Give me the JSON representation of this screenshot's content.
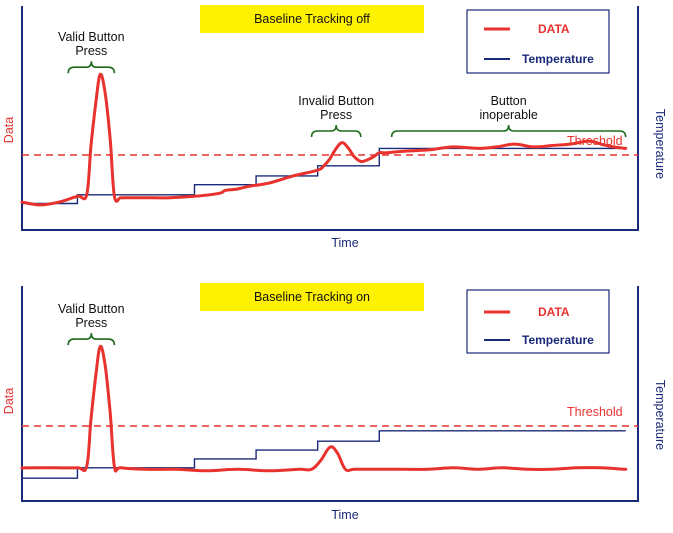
{
  "colors": {
    "data": "#e8322e",
    "temperature": "#1a2a7a",
    "threshold": "#e8322e",
    "axis": "#1a2a7a",
    "banner": "#fff200",
    "bracket": "#1e6b1e",
    "data_axis_label": "#e8322e",
    "temp_axis_label": "#1a2a7a",
    "time_label": "#1a2a7a"
  },
  "chart_data": [
    {
      "type": "line",
      "title": "Baseline Tracking off",
      "xlabel": "Time",
      "ylabel_left": "Data",
      "ylabel_right": "Temperature",
      "threshold_label": "Threshold",
      "threshold": 0.44,
      "xlim": [
        0,
        100
      ],
      "ylim": [
        0,
        1
      ],
      "legend": {
        "position": "top-right",
        "entries": [
          "DATA",
          "Temperature"
        ]
      },
      "series": [
        {
          "name": "DATA",
          "color": "#e8322e",
          "style": "smooth",
          "x": [
            0,
            3,
            6,
            9,
            10.5,
            11.2,
            12,
            12.7,
            13.5,
            14.3,
            15,
            16,
            17,
            20,
            24,
            28,
            32,
            33,
            35,
            37,
            40,
            44,
            48,
            49,
            50,
            51,
            52,
            53,
            54,
            55,
            56,
            57,
            58,
            59,
            62,
            66,
            70,
            74,
            77,
            80,
            83,
            86,
            89,
            92,
            94,
            96,
            98
          ],
          "y": [
            0.11,
            0.09,
            0.11,
            0.15,
            0.16,
            0.5,
            0.8,
            0.99,
            0.86,
            0.55,
            0.15,
            0.14,
            0.14,
            0.14,
            0.14,
            0.15,
            0.17,
            0.19,
            0.2,
            0.22,
            0.24,
            0.29,
            0.33,
            0.36,
            0.41,
            0.48,
            0.52,
            0.48,
            0.42,
            0.39,
            0.4,
            0.42,
            0.45,
            0.45,
            0.46,
            0.47,
            0.49,
            0.48,
            0.49,
            0.51,
            0.49,
            0.5,
            0.51,
            0.53,
            0.51,
            0.49,
            0.48
          ]
        },
        {
          "name": "Temperature",
          "color": "#1a2a7a",
          "style": "step",
          "x": [
            0,
            9,
            28,
            38,
            48,
            58,
            100
          ],
          "y": [
            0.1,
            0.16,
            0.23,
            0.29,
            0.36,
            0.48,
            0.48
          ],
          "x_end": 98
        }
      ],
      "annotations": [
        {
          "text": "Valid Button\nPress",
          "x_start": 7.5,
          "x_end": 15,
          "y": 1.04
        },
        {
          "text": "Invalid Button\nPress",
          "x_start": 47,
          "x_end": 55,
          "y": 0.6
        },
        {
          "text": "Button\ninoperable",
          "x_start": 60,
          "x_end": 98,
          "y": 0.6
        }
      ]
    },
    {
      "type": "line",
      "title": "Baseline Tracking on",
      "xlabel": "Time",
      "ylabel_left": "Data",
      "ylabel_right": "Temperature",
      "threshold_label": "Threshold",
      "threshold": 0.44,
      "xlim": [
        0,
        100
      ],
      "ylim": [
        0,
        1
      ],
      "legend": {
        "position": "top-right",
        "entries": [
          "DATA",
          "Temperature"
        ]
      },
      "series": [
        {
          "name": "DATA",
          "color": "#e8322e",
          "style": "smooth",
          "x": [
            0,
            5,
            9,
            10.5,
            11.2,
            12,
            12.7,
            13.5,
            14.3,
            15,
            16,
            20,
            25,
            30,
            35,
            40,
            45,
            47,
            48.5,
            50,
            51.2,
            52.5,
            54,
            58,
            62,
            66,
            70,
            74,
            78,
            82,
            86,
            90,
            94,
            98
          ],
          "y": [
            0.17,
            0.17,
            0.17,
            0.18,
            0.5,
            0.8,
            0.99,
            0.86,
            0.55,
            0.18,
            0.17,
            0.16,
            0.16,
            0.15,
            0.16,
            0.15,
            0.16,
            0.16,
            0.22,
            0.31,
            0.27,
            0.16,
            0.16,
            0.16,
            0.16,
            0.16,
            0.17,
            0.16,
            0.17,
            0.16,
            0.16,
            0.17,
            0.17,
            0.16
          ],
          "x_end": 98
        },
        {
          "name": "Temperature",
          "color": "#1a2a7a",
          "style": "step",
          "x": [
            0,
            9,
            28,
            38,
            48,
            58,
            100
          ],
          "y": [
            0.1,
            0.17,
            0.23,
            0.29,
            0.35,
            0.42,
            0.42
          ],
          "x_end": 98
        }
      ],
      "annotations": [
        {
          "text": "Valid Button\nPress",
          "x_start": 7.5,
          "x_end": 15,
          "y": 1.04
        }
      ]
    }
  ]
}
